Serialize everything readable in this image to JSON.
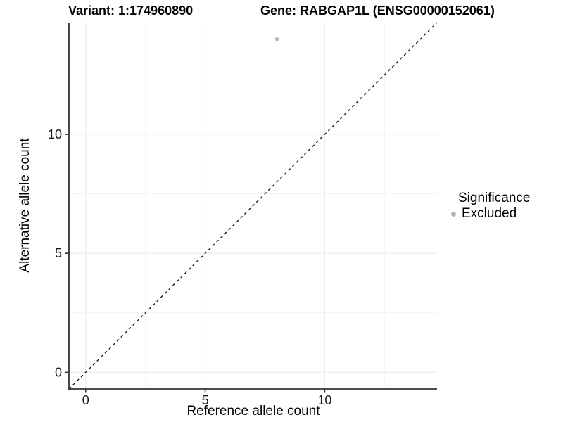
{
  "chart_data": {
    "type": "scatter",
    "title_left": "Variant: 1:174960890",
    "title_right": "Gene: RABGAP1L (ENSG00000152061)",
    "xlabel": "Reference allele count",
    "ylabel": "Alternative allele count",
    "xlim": [
      -0.7,
      14.7
    ],
    "ylim": [
      -0.7,
      14.7
    ],
    "x_ticks": [
      0,
      5,
      10
    ],
    "y_ticks": [
      0,
      5,
      10
    ],
    "x_minor": [
      2.5,
      7.5,
      12.5
    ],
    "y_minor": [
      2.5,
      7.5,
      12.5
    ],
    "grid": true,
    "series": [
      {
        "name": "Excluded",
        "color": "#b5b5b5",
        "points": [
          [
            8,
            14
          ]
        ]
      }
    ],
    "reference_line": {
      "type": "identity",
      "slope": 1,
      "intercept": 0,
      "style": "dashed",
      "color": "#111111"
    },
    "legend": {
      "title": "Significance",
      "position": "right",
      "items": [
        {
          "label": "Excluded",
          "color": "#b5b5b5"
        }
      ]
    },
    "colors": {
      "point": "#b5b5b5",
      "grid_major": "#ebebeb",
      "grid_minor": "#f3f3f3",
      "axis": "#333333",
      "tick_text": "#1a1a1a"
    }
  }
}
